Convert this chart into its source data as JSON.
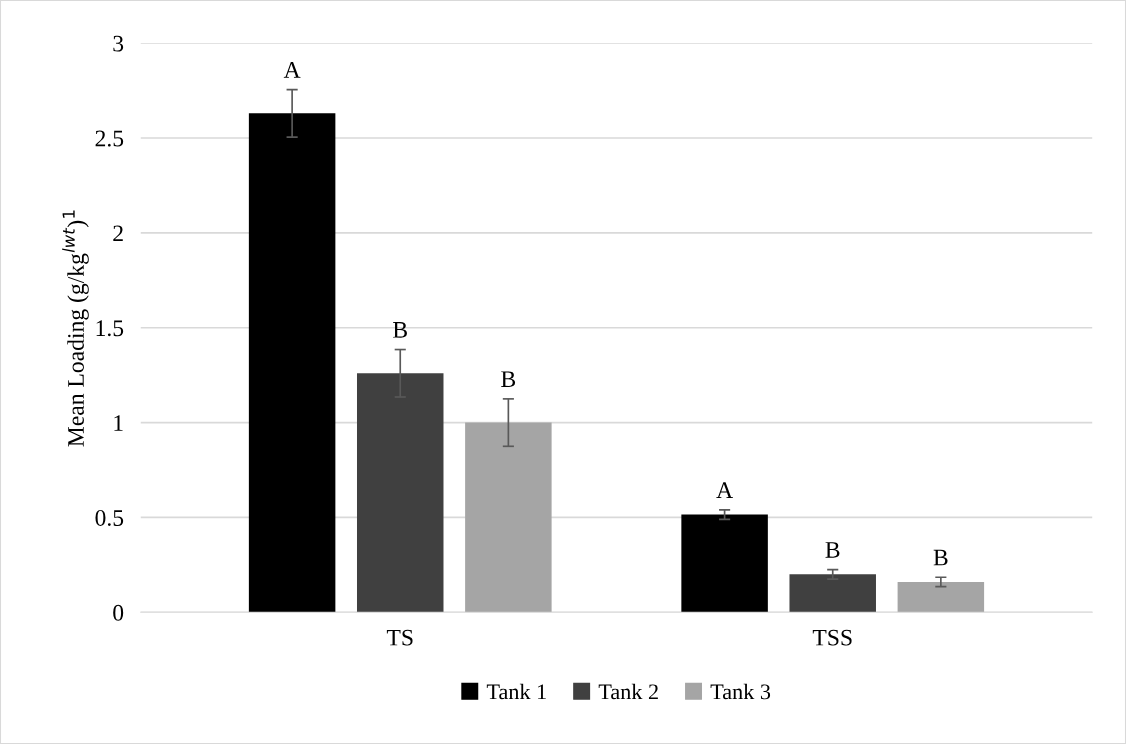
{
  "chart_data": {
    "type": "bar",
    "ylabel": "Mean Loading (g/kg$^{lwt}$)$^{1}$",
    "categories": [
      "TS",
      "TSS"
    ],
    "series": [
      {
        "name": "Tank 1",
        "color": "#000000",
        "values": [
          2.63,
          0.515
        ],
        "errors": [
          0.125,
          0.025
        ],
        "value_labels": [
          "A",
          "A"
        ]
      },
      {
        "name": "Tank 2",
        "color": "#404040",
        "values": [
          1.26,
          0.2
        ],
        "errors": [
          0.125,
          0.025
        ],
        "value_labels": [
          "B",
          "B"
        ]
      },
      {
        "name": "Tank 3",
        "color": "#a5a5a5",
        "values": [
          1.0,
          0.16
        ],
        "errors": [
          0.125,
          0.025
        ],
        "value_labels": [
          "B",
          "B"
        ]
      }
    ],
    "ylim": [
      0,
      3
    ],
    "yticks": [
      0,
      0.5,
      1,
      1.5,
      2,
      2.5,
      3
    ],
    "grid": "y",
    "legend": "bottom"
  }
}
